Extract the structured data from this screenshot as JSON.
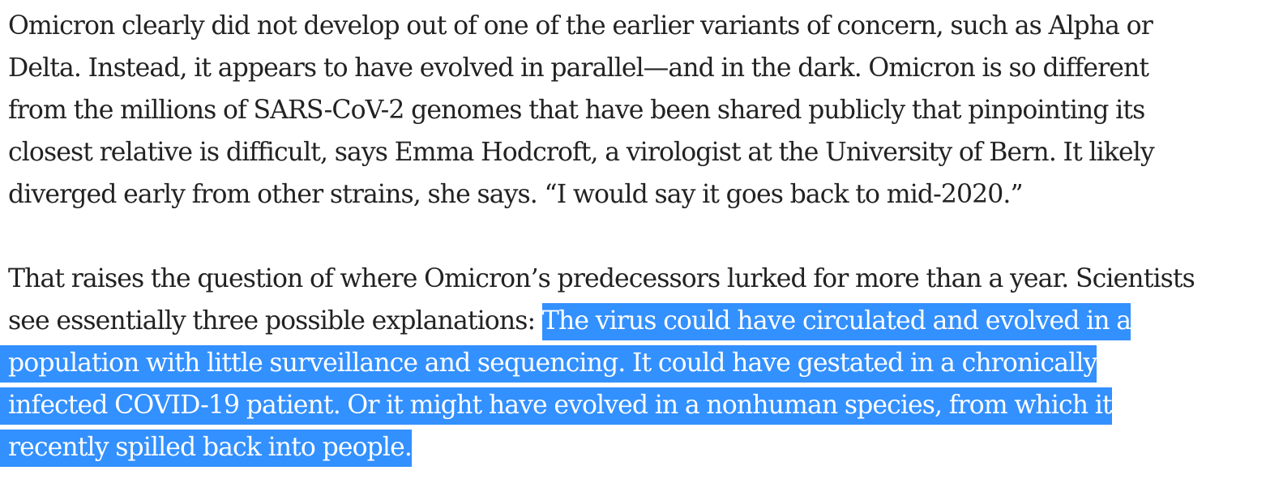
{
  "article": {
    "paragraph_1": {
      "lines": [
        "Omicron clearly did not develop out of one of the earlier variants of concern, such as Alpha or",
        "Delta. Instead, it appears to have evolved in parallel—and in the dark. Omicron is so different",
        "from the millions of SARS-CoV-2 genomes that have been shared publicly that pinpointing its",
        "closest relative is difficult, says Emma Hodcroft, a virologist at the University of Bern. It likely",
        "diverged early from other strains, she says. “I would say it goes back to mid-2020.”"
      ]
    },
    "paragraph_2": {
      "line_1": "That raises the question of where Omicron’s predecessors lurked for more than a year. Scientists",
      "line_2_plain": "see essentially three possible explanations: ",
      "line_2_selected": "The virus could have circulated and evolved in a",
      "selected_lines": [
        "population with little surveillance and sequencing. It could have gestated in a chronically",
        "infected COVID-19 patient. Or it might have evolved in a nonhuman species, from which it",
        "recently spilled back into people."
      ]
    },
    "selection_color": "#3390ff",
    "text_color": "#222222"
  }
}
